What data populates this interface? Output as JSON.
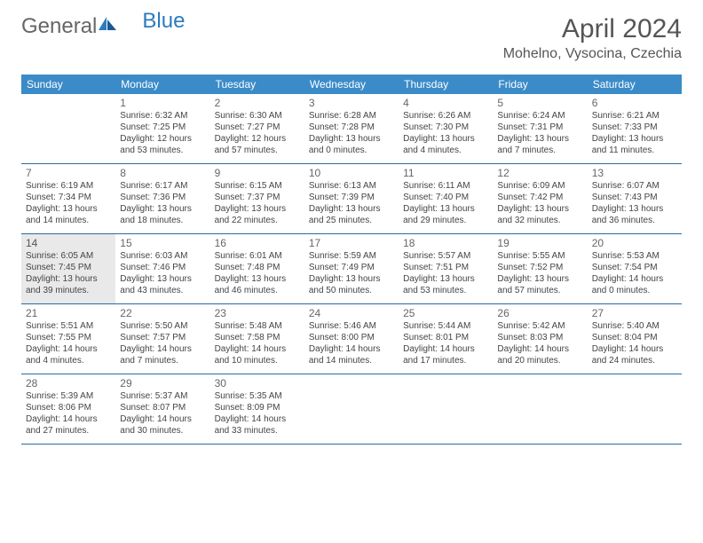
{
  "brand": {
    "part1": "General",
    "part2": "Blue"
  },
  "title": "April 2024",
  "location": "Mohelno, Vysocina, Czechia",
  "colors": {
    "header_bg": "#3b8bc9",
    "row_divider": "#2a6aa0",
    "highlight_bg": "#e9e9e9",
    "text": "#444444"
  },
  "day_names": [
    "Sunday",
    "Monday",
    "Tuesday",
    "Wednesday",
    "Thursday",
    "Friday",
    "Saturday"
  ],
  "weeks": [
    [
      {
        "num": "",
        "sunrise": "",
        "sunset": "",
        "daylight": ""
      },
      {
        "num": "1",
        "sunrise": "Sunrise: 6:32 AM",
        "sunset": "Sunset: 7:25 PM",
        "daylight": "Daylight: 12 hours and 53 minutes."
      },
      {
        "num": "2",
        "sunrise": "Sunrise: 6:30 AM",
        "sunset": "Sunset: 7:27 PM",
        "daylight": "Daylight: 12 hours and 57 minutes."
      },
      {
        "num": "3",
        "sunrise": "Sunrise: 6:28 AM",
        "sunset": "Sunset: 7:28 PM",
        "daylight": "Daylight: 13 hours and 0 minutes."
      },
      {
        "num": "4",
        "sunrise": "Sunrise: 6:26 AM",
        "sunset": "Sunset: 7:30 PM",
        "daylight": "Daylight: 13 hours and 4 minutes."
      },
      {
        "num": "5",
        "sunrise": "Sunrise: 6:24 AM",
        "sunset": "Sunset: 7:31 PM",
        "daylight": "Daylight: 13 hours and 7 minutes."
      },
      {
        "num": "6",
        "sunrise": "Sunrise: 6:21 AM",
        "sunset": "Sunset: 7:33 PM",
        "daylight": "Daylight: 13 hours and 11 minutes."
      }
    ],
    [
      {
        "num": "7",
        "sunrise": "Sunrise: 6:19 AM",
        "sunset": "Sunset: 7:34 PM",
        "daylight": "Daylight: 13 hours and 14 minutes."
      },
      {
        "num": "8",
        "sunrise": "Sunrise: 6:17 AM",
        "sunset": "Sunset: 7:36 PM",
        "daylight": "Daylight: 13 hours and 18 minutes."
      },
      {
        "num": "9",
        "sunrise": "Sunrise: 6:15 AM",
        "sunset": "Sunset: 7:37 PM",
        "daylight": "Daylight: 13 hours and 22 minutes."
      },
      {
        "num": "10",
        "sunrise": "Sunrise: 6:13 AM",
        "sunset": "Sunset: 7:39 PM",
        "daylight": "Daylight: 13 hours and 25 minutes."
      },
      {
        "num": "11",
        "sunrise": "Sunrise: 6:11 AM",
        "sunset": "Sunset: 7:40 PM",
        "daylight": "Daylight: 13 hours and 29 minutes."
      },
      {
        "num": "12",
        "sunrise": "Sunrise: 6:09 AM",
        "sunset": "Sunset: 7:42 PM",
        "daylight": "Daylight: 13 hours and 32 minutes."
      },
      {
        "num": "13",
        "sunrise": "Sunrise: 6:07 AM",
        "sunset": "Sunset: 7:43 PM",
        "daylight": "Daylight: 13 hours and 36 minutes."
      }
    ],
    [
      {
        "num": "14",
        "sunrise": "Sunrise: 6:05 AM",
        "sunset": "Sunset: 7:45 PM",
        "daylight": "Daylight: 13 hours and 39 minutes.",
        "highlight": true
      },
      {
        "num": "15",
        "sunrise": "Sunrise: 6:03 AM",
        "sunset": "Sunset: 7:46 PM",
        "daylight": "Daylight: 13 hours and 43 minutes."
      },
      {
        "num": "16",
        "sunrise": "Sunrise: 6:01 AM",
        "sunset": "Sunset: 7:48 PM",
        "daylight": "Daylight: 13 hours and 46 minutes."
      },
      {
        "num": "17",
        "sunrise": "Sunrise: 5:59 AM",
        "sunset": "Sunset: 7:49 PM",
        "daylight": "Daylight: 13 hours and 50 minutes."
      },
      {
        "num": "18",
        "sunrise": "Sunrise: 5:57 AM",
        "sunset": "Sunset: 7:51 PM",
        "daylight": "Daylight: 13 hours and 53 minutes."
      },
      {
        "num": "19",
        "sunrise": "Sunrise: 5:55 AM",
        "sunset": "Sunset: 7:52 PM",
        "daylight": "Daylight: 13 hours and 57 minutes."
      },
      {
        "num": "20",
        "sunrise": "Sunrise: 5:53 AM",
        "sunset": "Sunset: 7:54 PM",
        "daylight": "Daylight: 14 hours and 0 minutes."
      }
    ],
    [
      {
        "num": "21",
        "sunrise": "Sunrise: 5:51 AM",
        "sunset": "Sunset: 7:55 PM",
        "daylight": "Daylight: 14 hours and 4 minutes."
      },
      {
        "num": "22",
        "sunrise": "Sunrise: 5:50 AM",
        "sunset": "Sunset: 7:57 PM",
        "daylight": "Daylight: 14 hours and 7 minutes."
      },
      {
        "num": "23",
        "sunrise": "Sunrise: 5:48 AM",
        "sunset": "Sunset: 7:58 PM",
        "daylight": "Daylight: 14 hours and 10 minutes."
      },
      {
        "num": "24",
        "sunrise": "Sunrise: 5:46 AM",
        "sunset": "Sunset: 8:00 PM",
        "daylight": "Daylight: 14 hours and 14 minutes."
      },
      {
        "num": "25",
        "sunrise": "Sunrise: 5:44 AM",
        "sunset": "Sunset: 8:01 PM",
        "daylight": "Daylight: 14 hours and 17 minutes."
      },
      {
        "num": "26",
        "sunrise": "Sunrise: 5:42 AM",
        "sunset": "Sunset: 8:03 PM",
        "daylight": "Daylight: 14 hours and 20 minutes."
      },
      {
        "num": "27",
        "sunrise": "Sunrise: 5:40 AM",
        "sunset": "Sunset: 8:04 PM",
        "daylight": "Daylight: 14 hours and 24 minutes."
      }
    ],
    [
      {
        "num": "28",
        "sunrise": "Sunrise: 5:39 AM",
        "sunset": "Sunset: 8:06 PM",
        "daylight": "Daylight: 14 hours and 27 minutes."
      },
      {
        "num": "29",
        "sunrise": "Sunrise: 5:37 AM",
        "sunset": "Sunset: 8:07 PM",
        "daylight": "Daylight: 14 hours and 30 minutes."
      },
      {
        "num": "30",
        "sunrise": "Sunrise: 5:35 AM",
        "sunset": "Sunset: 8:09 PM",
        "daylight": "Daylight: 14 hours and 33 minutes."
      },
      {
        "num": "",
        "sunrise": "",
        "sunset": "",
        "daylight": ""
      },
      {
        "num": "",
        "sunrise": "",
        "sunset": "",
        "daylight": ""
      },
      {
        "num": "",
        "sunrise": "",
        "sunset": "",
        "daylight": ""
      },
      {
        "num": "",
        "sunrise": "",
        "sunset": "",
        "daylight": ""
      }
    ]
  ]
}
